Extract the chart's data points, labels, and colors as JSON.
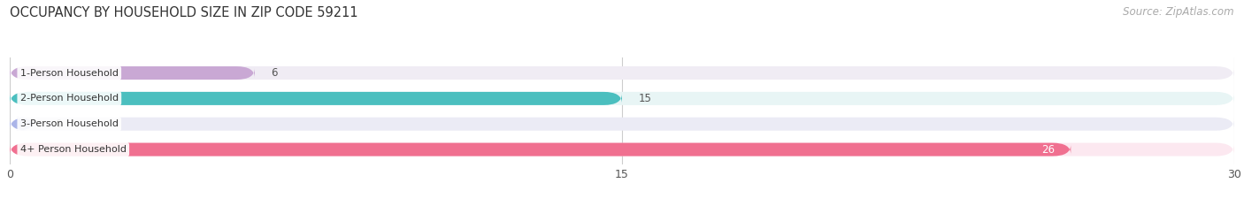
{
  "title": "OCCUPANCY BY HOUSEHOLD SIZE IN ZIP CODE 59211",
  "source": "Source: ZipAtlas.com",
  "categories": [
    "1-Person Household",
    "2-Person Household",
    "3-Person Household",
    "4+ Person Household"
  ],
  "values": [
    6,
    15,
    0,
    26
  ],
  "bar_colors": [
    "#c9a8d4",
    "#4bbfbf",
    "#aab4e8",
    "#f07090"
  ],
  "bg_colors": [
    "#f0ecf4",
    "#e8f5f5",
    "#ebebf5",
    "#fce8f0"
  ],
  "xlim": [
    0,
    30
  ],
  "xticks": [
    0,
    15,
    30
  ],
  "title_fontsize": 10.5,
  "source_fontsize": 8.5,
  "bar_height": 0.52,
  "background_color": "#ffffff"
}
